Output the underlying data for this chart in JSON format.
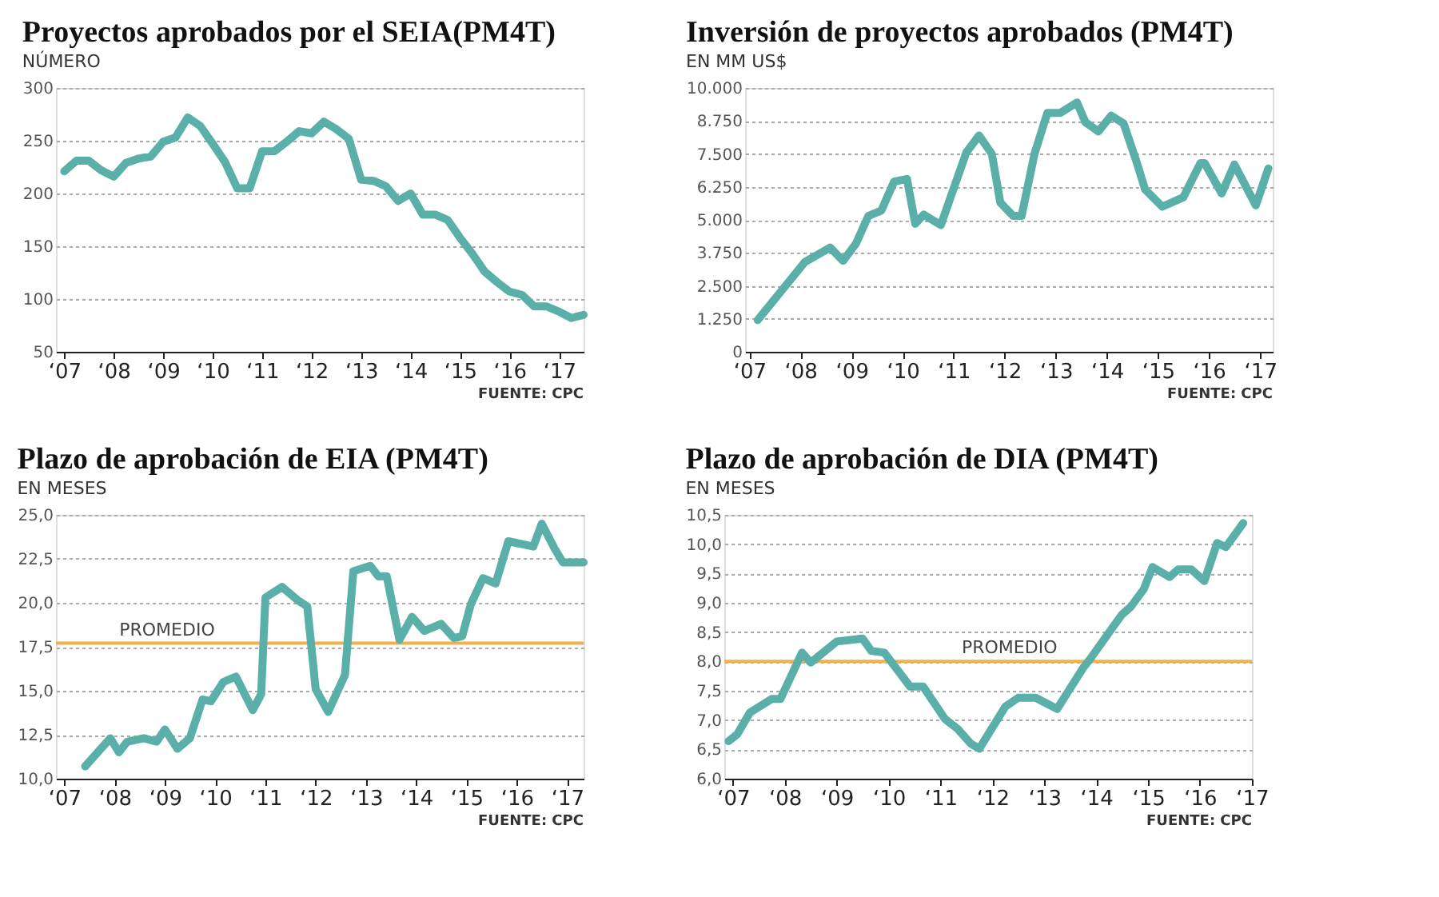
{
  "chart_data": [
    {
      "type": "line",
      "title": "Proyectos aprobados por el SEIA(PM4T)",
      "ylabel": "NÚMERO",
      "annotations": [
        "FUENTE: CPC"
      ],
      "grid": "y",
      "marker": "none",
      "line_style": "solid",
      "xlim": [
        "2006-11",
        "2017-07"
      ],
      "ylim": [
        50,
        300
      ],
      "yticks": [
        50,
        100,
        150,
        200,
        250,
        300
      ],
      "xticks": [
        {
          "value": "2007",
          "label": "‘07"
        },
        {
          "value": "2008",
          "label": "‘08"
        },
        {
          "value": "2009",
          "label": "‘09"
        },
        {
          "value": "2010",
          "label": "‘10"
        },
        {
          "value": "2011",
          "label": "‘11"
        },
        {
          "value": "2012",
          "label": "‘12"
        },
        {
          "value": "2013",
          "label": "‘13"
        },
        {
          "value": "2014",
          "label": "‘14"
        },
        {
          "value": "2015",
          "label": "‘15"
        },
        {
          "value": "2016",
          "label": "‘16"
        },
        {
          "value": "2017",
          "label": "‘17"
        }
      ],
      "series": [
        {
          "color": "#5ab0a8",
          "x": [
            "2007-01",
            "2007-04",
            "2007-07",
            "2007-10",
            "2008-01",
            "2008-04",
            "2008-07",
            "2008-10",
            "2009-01",
            "2009-04",
            "2009-07",
            "2009-10",
            "2010-01",
            "2010-04",
            "2010-07",
            "2010-10",
            "2011-01",
            "2011-04",
            "2011-07",
            "2011-10",
            "2012-01",
            "2012-04",
            "2012-07",
            "2012-10",
            "2013-01",
            "2013-04",
            "2013-07",
            "2013-10",
            "2014-01",
            "2014-04",
            "2014-07",
            "2014-10",
            "2015-01",
            "2015-04",
            "2015-07",
            "2015-10",
            "2016-01",
            "2016-04",
            "2016-07",
            "2016-10",
            "2017-01",
            "2017-04",
            "2017-07"
          ],
          "values": [
            221,
            231,
            231,
            222,
            216,
            229,
            233,
            235,
            249,
            253,
            272,
            264,
            247,
            230,
            205,
            205,
            240,
            240,
            249,
            259,
            257,
            268,
            261,
            252,
            213,
            212,
            207,
            193,
            200,
            180,
            180,
            175,
            158,
            143,
            126,
            116,
            107,
            104,
            93,
            93,
            88,
            82,
            85
          ]
        }
      ]
    },
    {
      "type": "line",
      "title": "Inversión de proyectos aprobados (PM4T)",
      "ylabel": "EN MM US$",
      "annotations": [
        "FUENTE: CPC"
      ],
      "grid": "y",
      "marker": "none",
      "line_style": "solid",
      "xlim": [
        "2006-12",
        "2017-04"
      ],
      "ylim": [
        0,
        10000
      ],
      "yticks": [
        0,
        {
          "value": 1250,
          "label": "1.250"
        },
        {
          "value": 2500,
          "label": "2.500"
        },
        {
          "value": 3750,
          "label": "3.750"
        },
        {
          "value": 5000,
          "label": "5.000"
        },
        {
          "value": 6250,
          "label": "6.250"
        },
        {
          "value": 7500,
          "label": "7.500"
        },
        {
          "value": 8750,
          "label": "8.750"
        },
        {
          "value": 10000,
          "label": "10.000"
        }
      ],
      "xticks": [
        {
          "value": "2007",
          "label": "‘07"
        },
        {
          "value": "2008",
          "label": "‘08"
        },
        {
          "value": "2009",
          "label": "‘09"
        },
        {
          "value": "2010",
          "label": "‘10"
        },
        {
          "value": "2011",
          "label": "‘11"
        },
        {
          "value": "2012",
          "label": "‘12"
        },
        {
          "value": "2013",
          "label": "‘13"
        },
        {
          "value": "2014",
          "label": "‘14"
        },
        {
          "value": "2015",
          "label": "‘15"
        },
        {
          "value": "2016",
          "label": "‘16"
        },
        {
          "value": "2017",
          "label": "‘17"
        }
      ],
      "series": [
        {
          "color": "#5ab0a8",
          "x": [
            "2007-03",
            "2008-02",
            "2008-08",
            "2008-11",
            "2009-02",
            "2009-05",
            "2009-08",
            "2009-11",
            "2010-02",
            "2010-04",
            "2010-06",
            "2010-10",
            "2011-04",
            "2011-07",
            "2011-10",
            "2011-12",
            "2012-03",
            "2012-05",
            "2012-08",
            "2012-11",
            "2013-02",
            "2013-06",
            "2013-08",
            "2013-11",
            "2014-02",
            "2014-05",
            "2014-08",
            "2014-10",
            "2015-02",
            "2015-07",
            "2015-11",
            "2015-12",
            "2016-04",
            "2016-07",
            "2016-12",
            "2017-03"
          ],
          "values": [
            1200,
            3400,
            3950,
            3450,
            4100,
            5150,
            5350,
            6450,
            6550,
            4850,
            5200,
            4800,
            7550,
            8200,
            7500,
            5650,
            5150,
            5150,
            7500,
            9050,
            9050,
            9450,
            8700,
            8350,
            8950,
            8650,
            7200,
            6150,
            5500,
            5850,
            7150,
            7150,
            6000,
            7100,
            5550,
            6950
          ]
        }
      ]
    },
    {
      "type": "line",
      "title": "Plazo de aprobación de EIA (PM4T)",
      "ylabel": "EN MESES",
      "annotations": [
        "FUENTE: CPC"
      ],
      "grid": "y",
      "marker": "none",
      "line_style": "solid",
      "xlim": [
        "2006-11",
        "2017-05"
      ],
      "ylim": [
        10,
        25
      ],
      "yticks": [
        {
          "value": 10,
          "label": "10,0"
        },
        {
          "value": 12.5,
          "label": "12,5"
        },
        {
          "value": 15,
          "label": "15,0"
        },
        {
          "value": 17.5,
          "label": "17,5"
        },
        {
          "value": 20,
          "label": "20,0"
        },
        {
          "value": 22.5,
          "label": "22,5"
        },
        {
          "value": 25,
          "label": "25,0"
        }
      ],
      "xticks": [
        {
          "value": "2007",
          "label": "‘07"
        },
        {
          "value": "2008",
          "label": "‘08"
        },
        {
          "value": "2009",
          "label": "‘09"
        },
        {
          "value": "2010",
          "label": "‘10"
        },
        {
          "value": "2011",
          "label": "‘11"
        },
        {
          "value": "2012",
          "label": "‘12"
        },
        {
          "value": "2013",
          "label": "‘13"
        },
        {
          "value": "2014",
          "label": "‘14"
        },
        {
          "value": "2015",
          "label": "‘15"
        },
        {
          "value": "2016",
          "label": "‘16"
        },
        {
          "value": "2017",
          "label": "‘17"
        }
      ],
      "ref_lines": [
        {
          "axis": "y",
          "value": 17.7,
          "label": "PROMEDIO",
          "color": "#f0b04a"
        }
      ],
      "series": [
        {
          "color": "#5ab0a8",
          "x": [
            "2007-06",
            "2007-12",
            "2008-02",
            "2008-04",
            "2008-08",
            "2008-11",
            "2009-01",
            "2009-04",
            "2009-07",
            "2009-10",
            "2009-12",
            "2010-03",
            "2010-06",
            "2010-10",
            "2010-12",
            "2011-01",
            "2011-05",
            "2011-09",
            "2011-11",
            "2012-01",
            "2012-04",
            "2012-08",
            "2012-10",
            "2013-02",
            "2013-04",
            "2013-06",
            "2013-09",
            "2013-12",
            "2014-03",
            "2014-07",
            "2014-10",
            "2014-12",
            "2015-02",
            "2015-05",
            "2015-08",
            "2015-11",
            "2016-05",
            "2016-07",
            "2016-10",
            "2016-12",
            "2017-05"
          ],
          "values": [
            10.7,
            12.3,
            11.5,
            12.1,
            12.3,
            12.1,
            12.8,
            11.7,
            12.3,
            14.5,
            14.4,
            15.5,
            15.8,
            13.9,
            14.8,
            20.3,
            20.9,
            20.1,
            19.8,
            15.1,
            13.8,
            15.9,
            21.8,
            22.1,
            21.5,
            21.5,
            17.9,
            19.2,
            18.4,
            18.8,
            18.0,
            18.1,
            19.9,
            21.4,
            21.1,
            23.5,
            23.2,
            24.5,
            23.1,
            22.3,
            22.3
          ]
        }
      ]
    },
    {
      "type": "line",
      "title": "Plazo de aprobación de DIA (PM4T)",
      "ylabel": "EN MESES",
      "annotations": [
        "FUENTE: CPC"
      ],
      "grid": "y",
      "marker": "none",
      "line_style": "solid",
      "xlim": [
        "2006-11",
        "2017-01"
      ],
      "ylim": [
        6,
        10.5
      ],
      "yticks": [
        {
          "value": 6,
          "label": "6,0"
        },
        {
          "value": 6.5,
          "label": "6,5"
        },
        {
          "value": 7,
          "label": "7,0"
        },
        {
          "value": 7.5,
          "label": "7,5"
        },
        {
          "value": 8,
          "label": "8,0"
        },
        {
          "value": 8.5,
          "label": "8,5"
        },
        {
          "value": 9,
          "label": "9,0"
        },
        {
          "value": 9.5,
          "label": "9,5"
        },
        {
          "value": 10,
          "label": "10,0"
        },
        {
          "value": 10.5,
          "label": "10,5"
        }
      ],
      "xticks": [
        {
          "value": "2007",
          "label": "‘07"
        },
        {
          "value": "2008",
          "label": "‘08"
        },
        {
          "value": "2009",
          "label": "‘09"
        },
        {
          "value": "2010",
          "label": "‘10"
        },
        {
          "value": "2011",
          "label": "‘11"
        },
        {
          "value": "2012",
          "label": "‘12"
        },
        {
          "value": "2013",
          "label": "‘13"
        },
        {
          "value": "2014",
          "label": "‘14"
        },
        {
          "value": "2015",
          "label": "‘15"
        },
        {
          "value": "2016",
          "label": "‘16"
        },
        {
          "value": "2017",
          "label": "‘17"
        }
      ],
      "ref_lines": [
        {
          "axis": "y",
          "value": 8.0,
          "label": "PROMEDIO",
          "color": "#f0b04a"
        }
      ],
      "series": [
        {
          "color": "#5ab0a8",
          "x": [
            "2006-12",
            "2007-02",
            "2007-05",
            "2007-10",
            "2007-12",
            "2008-05",
            "2008-07",
            "2009-01",
            "2009-07",
            "2009-09",
            "2009-12",
            "2010-06",
            "2010-09",
            "2011-02",
            "2011-05",
            "2011-08",
            "2011-10",
            "2012-04",
            "2012-07",
            "2012-11",
            "2013-04",
            "2013-10",
            "2013-12",
            "2014-07",
            "2014-09",
            "2014-12",
            "2015-02",
            "2015-06",
            "2015-08",
            "2015-11",
            "2016-02",
            "2016-05",
            "2016-07",
            "2016-11"
          ],
          "values": [
            6.64,
            6.76,
            7.13,
            7.36,
            7.36,
            8.15,
            7.98,
            8.34,
            8.39,
            8.18,
            8.15,
            7.57,
            7.57,
            7.02,
            6.85,
            6.6,
            6.51,
            7.23,
            7.38,
            7.38,
            7.19,
            7.89,
            8.08,
            8.8,
            8.93,
            9.23,
            9.61,
            9.44,
            9.57,
            9.57,
            9.37,
            10.02,
            9.95,
            10.36
          ]
        }
      ]
    }
  ]
}
